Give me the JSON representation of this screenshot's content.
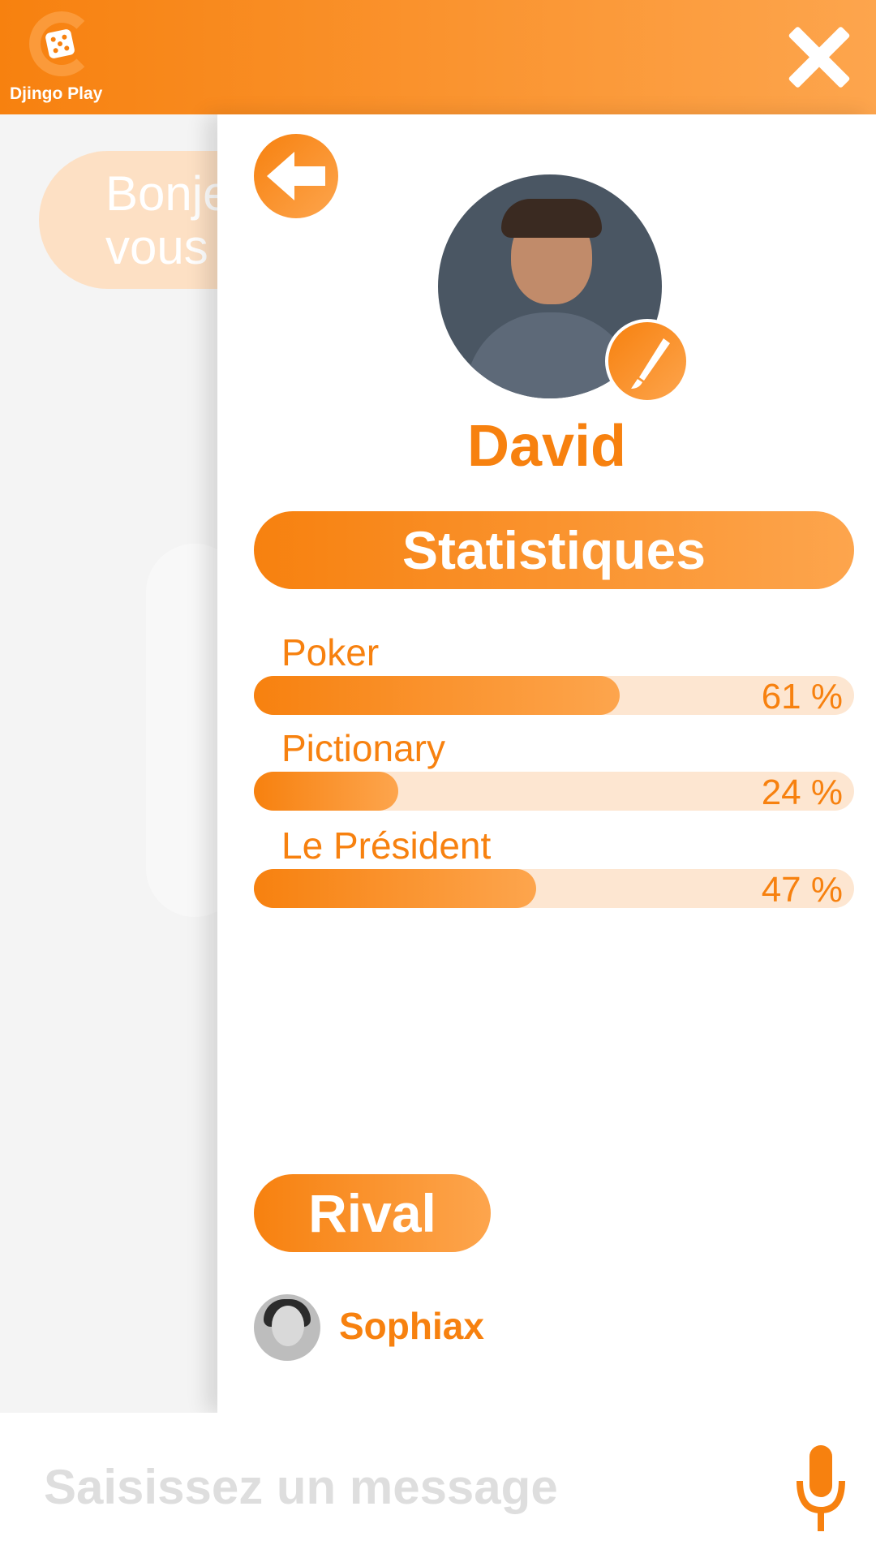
{
  "header": {
    "logo_text": "Djingo Play",
    "close_icon": "close-icon"
  },
  "background_chat": {
    "bubble_text_line1": "Bonje",
    "bubble_text_line2": "vous"
  },
  "profile": {
    "back_icon": "arrow-left-icon",
    "edit_icon": "brush-icon",
    "name": "David",
    "stats_title": "Statistiques",
    "stats": [
      {
        "game": "Poker",
        "percent_label": "61 %",
        "value": 61
      },
      {
        "game": "Pictionary",
        "percent_label": "24 %",
        "value": 24
      },
      {
        "game": "Le Président",
        "percent_label": "47 %",
        "value": 47
      }
    ],
    "rival_title": "Rival",
    "rival_name": "Sophiax"
  },
  "input": {
    "placeholder": "Saisissez un message",
    "mic_icon": "microphone-icon"
  },
  "colors": {
    "accent": "#f7810f",
    "accent_light": "#fda54d",
    "track": "#fde6d1"
  }
}
